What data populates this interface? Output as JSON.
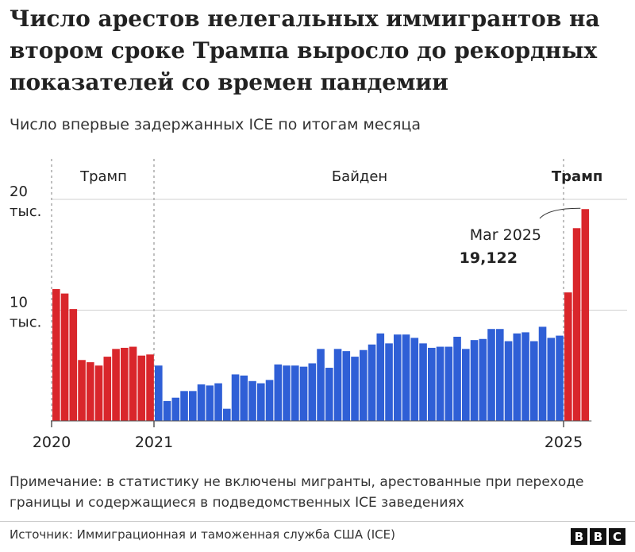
{
  "title": "Число арестов нелегальных иммигрантов на втором сроке Трампа выросло до рекордных показателей со времен пандемии",
  "subtitle": "Число впервые задержанных ICE по итогам месяца",
  "note": "Примечание: в статистику не включены мигранты, арестованные при переходе границы и содержащиеся в подведомственных ICE заведениях",
  "source": "Источник: Иммиграционная и таможенная служба США (ICE)",
  "logo": [
    "B",
    "B",
    "C"
  ],
  "colors": {
    "trump": "#d9262b",
    "biden": "#2f5fd6",
    "grid": "#d0d0d0",
    "text": "#222222"
  },
  "chart_data": {
    "type": "bar",
    "ylim": [
      0,
      20000
    ],
    "y_ticks": [
      {
        "value": 20000,
        "line1": "20",
        "line2": "тыс."
      },
      {
        "value": 10000,
        "line1": "10",
        "line2": "тыс."
      }
    ],
    "x_labels": [
      {
        "label": "2020",
        "at": 0
      },
      {
        "label": "2021",
        "at": 12
      },
      {
        "label": "2025",
        "at": 60
      }
    ],
    "periods": [
      {
        "label": "Трамп",
        "start": 0,
        "end": 12,
        "bold": false
      },
      {
        "label": "Байден",
        "start": 12,
        "end": 60,
        "bold": false
      },
      {
        "label": "Трамп",
        "start": 60,
        "end": 63,
        "bold": true
      }
    ],
    "annotation": {
      "line1": "Mar 2025",
      "line2": "19,122",
      "index": 62
    },
    "series": [
      {
        "name": "Трамп",
        "start_index": 0,
        "values": [
          11900,
          11500,
          10100,
          5500,
          5300,
          5000,
          5800,
          6500,
          6600,
          6700,
          5900,
          6000
        ]
      },
      {
        "name": "Байден",
        "start_index": 12,
        "values": [
          5000,
          1800,
          2100,
          2700,
          2700,
          3300,
          3200,
          3400,
          1100,
          4200,
          4100,
          3600,
          3400,
          3700,
          5100,
          5000,
          5000,
          4900,
          5200,
          6500,
          4800,
          6500,
          6300,
          5800,
          6400,
          6900,
          7900,
          7000,
          7800,
          7800,
          7500,
          7000,
          6600,
          6700,
          6700,
          7600,
          6500,
          7300,
          7400,
          8300,
          8300,
          7200,
          7900,
          8000,
          7200,
          8500,
          7500,
          7700
        ]
      },
      {
        "name": "Трамп",
        "start_index": 60,
        "values": [
          11600,
          17400,
          19122
        ]
      }
    ]
  }
}
